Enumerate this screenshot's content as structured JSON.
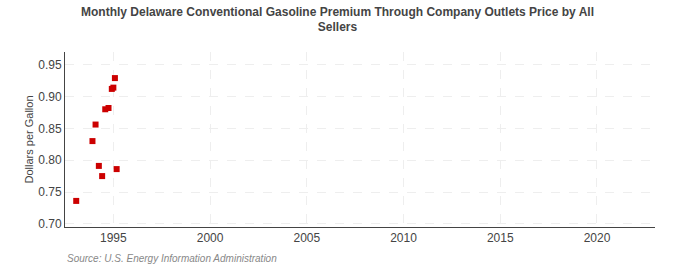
{
  "chart_data": {
    "type": "scatter",
    "title": "Monthly Delaware Conventional Gasoline Premium Through Company Outlets Price by All\nSellers",
    "ylabel": "Dollars per Gallon",
    "annotations": [
      "Source: U.S. Energy Information Administration"
    ],
    "x": [
      1993.08,
      1993.92,
      1994.08,
      1994.25,
      1994.42,
      1994.58,
      1994.75,
      1994.92,
      1995.0,
      1995.08,
      1995.17
    ],
    "values": [
      0.736,
      0.83,
      0.856,
      0.791,
      0.775,
      0.88,
      0.882,
      0.912,
      0.914,
      0.929,
      0.786
    ],
    "color": "#cc0000",
    "marker": "square",
    "grid": true,
    "xlim": [
      1992.5,
      2023
    ],
    "ylim": [
      0.695,
      0.97
    ],
    "xticks": [
      1995,
      2000,
      2005,
      2010,
      2015,
      2020
    ],
    "yticks": [
      {
        "value": 0.7,
        "label": "0.70"
      },
      0.75,
      {
        "value": 0.8,
        "label": "0.80"
      },
      0.85,
      {
        "value": 0.9,
        "label": "0.90"
      },
      0.95
    ]
  }
}
